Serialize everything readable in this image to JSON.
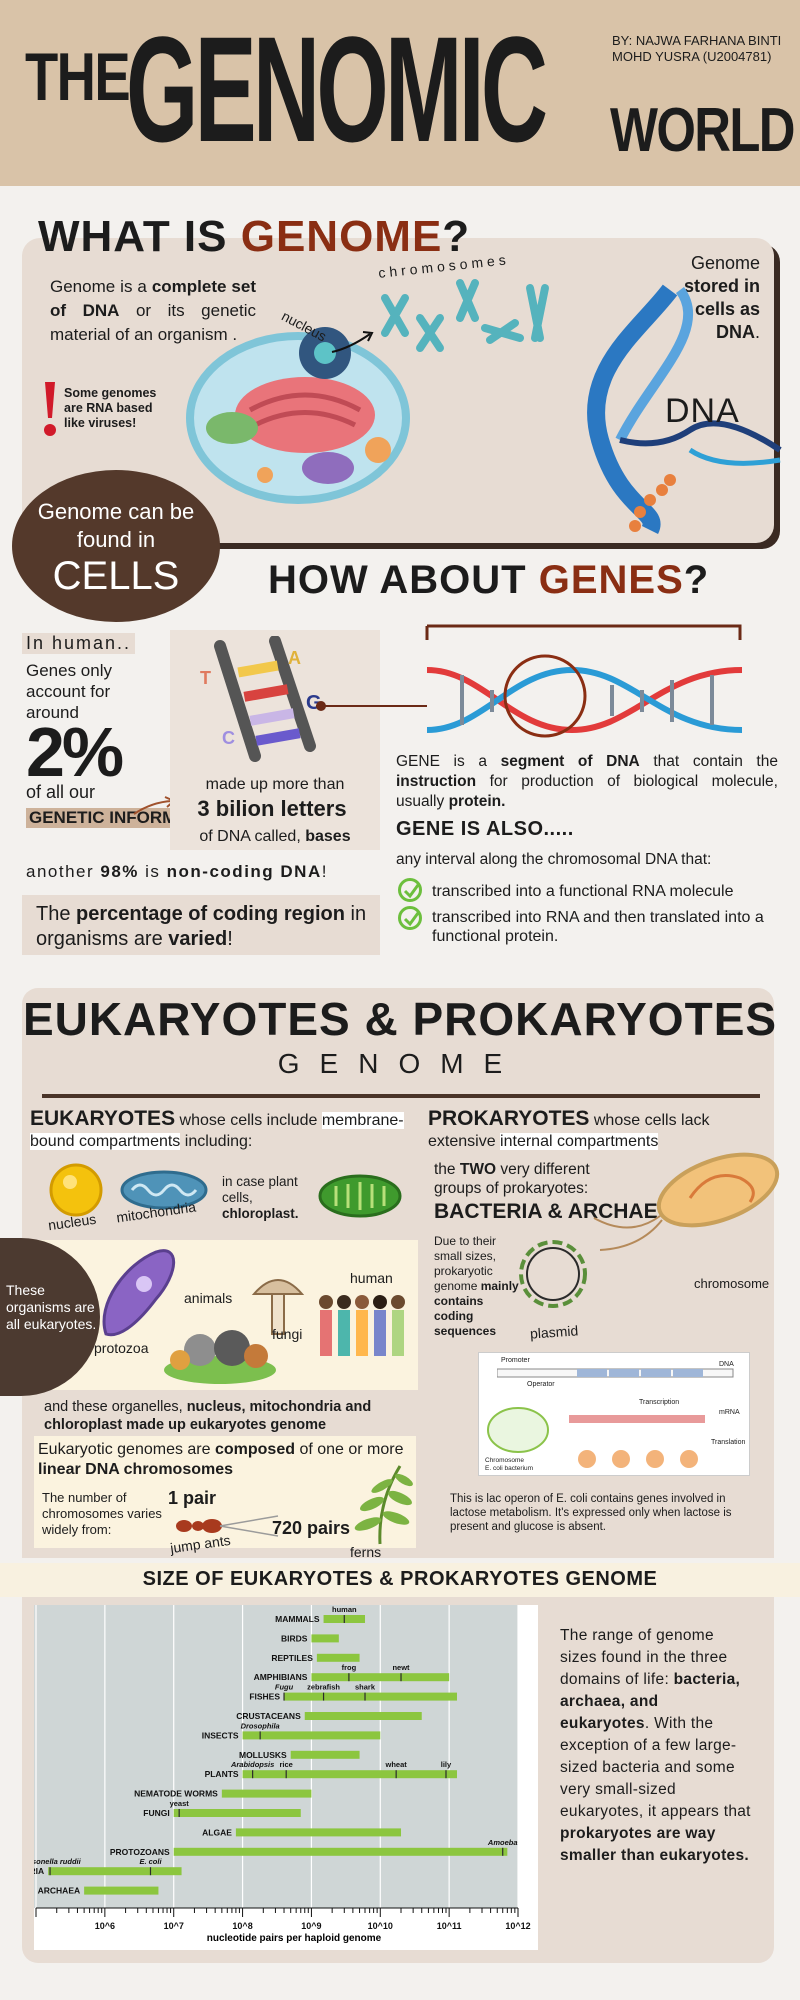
{
  "header": {
    "the": "THE",
    "genomic": "GENOMIC",
    "world": "WORLD",
    "author": "BY: NAJWA FARHANA BINTI MOHD YUSRA (U2004781)"
  },
  "genome": {
    "heading_pre": "WHAT IS ",
    "heading_word": "GENOME",
    "heading_post": "?",
    "def_1": "Genome is a ",
    "def_b1": "complete set of DNA",
    "def_2": " or its genetic material of an organism .",
    "rna_note": "Some genomes are RNA based like viruses!",
    "stored_1": "Genome ",
    "stored_b": "stored in cells as DNA",
    "lbl_chromosomes": "chromosomes",
    "lbl_nucleus": "nucleus",
    "lbl_dna": "DNA",
    "bubble_1": "Genome can be found in",
    "bubble_2": "CELLS"
  },
  "genes": {
    "heading_pre": "HOW ABOUT ",
    "heading_word": "GENES",
    "heading_post": "?",
    "in_human": "In human..",
    "genes_only": "Genes only account for around",
    "pct": "2%",
    "of_all": "of all our",
    "genetic_info": "GENETIC INFORMATION",
    "made_up": "made up more than",
    "billion": "3 bilion letters",
    "of_dna": "of DNA called, ",
    "bases": "bases",
    "another_1": "another ",
    "another_b": "98%",
    "another_2": " is ",
    "another_b2": "non-coding DNA",
    "another_3": "!",
    "percent_1": "The ",
    "percent_b1": "percentage of coding region",
    "percent_2": " in organisms are ",
    "percent_b2": "varied",
    "percent_3": "!",
    "base_t": "T",
    "base_a": "A",
    "base_g": "G",
    "base_c": "C",
    "gene_def_1": "GENE is a ",
    "gene_def_b1": "segment of DNA",
    "gene_def_2": " that contain the ",
    "gene_def_b2": "instruction",
    "gene_def_3": " for production of biological molecule, usually ",
    "gene_def_b3": "protein.",
    "gene_also": "GENE IS ALSO.....",
    "any_interval": "any interval along the chromosomal DNA that:",
    "check_1": "transcribed into a functional RNA molecule",
    "check_2": "transcribed into RNA and then translated into a functional protein."
  },
  "euk_pro": {
    "title": "EUKARYOTES & PROKARYOTES",
    "subtitle": "GENOME",
    "euk_b": "EUKARYOTES",
    "euk_t1": " whose cells include ",
    "euk_hl": "membrane-bound compartments",
    "euk_t2": " including:",
    "lbl_nucleus": "nucleus",
    "lbl_mito": "mitochondria",
    "plant_1": "in case plant cells, ",
    "plant_b": "chloroplast.",
    "lbl_protozoa": "protozoa",
    "lbl_animals": "animals",
    "lbl_fungi": "fungi",
    "lbl_human": "human",
    "side_note": "These organisms are all eukaryotes.",
    "organelles_1": "and these organelles, ",
    "organelles_2": "nucleus, mitochondria and chloroplast made up eukaryotes genome",
    "comp_1": "Eukaryotic genomes are ",
    "comp_b1": "composed",
    "comp_2": " of one or more ",
    "comp_b2": "linear DNA chromosomes",
    "num_text": "The number of chromosomes varies widely from:",
    "pair_1": "1 pair",
    "lbl_ants": "jump ants",
    "pair_720": "720 pairs",
    "lbl_ferns": "ferns",
    "pro_b": "PROKARYOTES",
    "pro_t1": " whose cells lack extensive ",
    "pro_hl": "internal compartments",
    "two_1": "the ",
    "two_b": "TWO",
    "two_2": " very different groups of prokaryotes:",
    "ba": "BACTERIA & ARCHAE",
    "due_1": "Due to their small sizes, prokaryotic genome ",
    "due_b": "mainly contains coding sequences",
    "lbl_plasmid": "plasmid",
    "lbl_chromosome": "chromosome",
    "lac_note": "This is lac operon of E. coli contains genes involved in lactose metabolism. It's expressed only when lactose is present and glucose is absent.",
    "op_promoter": "Promoter",
    "op_operator": "Operator",
    "op_dna": "DNA",
    "op_mrna": "mRNA",
    "op_transcription": "Transcription",
    "op_translation": "Translation",
    "op_chromosome": "Chromosome",
    "op_ecoli": "E. coli bacterium"
  },
  "size": {
    "title": "SIZE OF EUKARYOTES & PROKARYOTES GENOME",
    "text_1": "The range of genome sizes found in the three domains of life: ",
    "text_b1": "bacteria, archaea, and eukaryotes",
    "text_2": ". With the exception of a few large-sized bacteria and some very small-sized eukaryotes, it appears that ",
    "text_b2": "prokaryotes are way smaller than eukaryotes."
  },
  "chart_data": {
    "type": "bar",
    "xlabel": "nucleotide pairs per haploid genome",
    "xscale": "log",
    "xlim": [
      100000,
      1000000000000
    ],
    "xticks": [
      "10^6",
      "10^7",
      "10^8",
      "10^9",
      "10^10",
      "10^11",
      "10^12"
    ],
    "categories": [
      "MAMMALS",
      "BIRDS",
      "REPTILES",
      "AMPHIBIANS",
      "FISHES",
      "CRUSTACEANS",
      "INSECTS",
      "MOLLUSKS",
      "PLANTS",
      "NEMATODE WORMS",
      "FUNGI",
      "ALGAE",
      "PROTOZOANS",
      "BACTERIA",
      "ARCHAEA"
    ],
    "ranges": [
      [
        1500000000,
        6000000000
      ],
      [
        1000000000,
        2500000000
      ],
      [
        1200000000,
        5000000000
      ],
      [
        1000000000,
        100000000000
      ],
      [
        400000000,
        130000000000
      ],
      [
        800000000,
        40000000000
      ],
      [
        100000000,
        10000000000
      ],
      [
        500000000,
        5000000000
      ],
      [
        100000000,
        130000000000
      ],
      [
        50000000,
        1000000000
      ],
      [
        10000000,
        700000000
      ],
      [
        80000000,
        20000000000
      ],
      [
        10000000,
        700000000000
      ],
      [
        150000,
        13000000
      ],
      [
        500000,
        6000000
      ]
    ],
    "annotations": [
      {
        "label": "human",
        "x": 3000000000,
        "row": 0
      },
      {
        "label": "frog",
        "x": 3500000000,
        "row": 3
      },
      {
        "label": "newt",
        "x": 20000000000,
        "row": 3
      },
      {
        "label": "Fugu",
        "x": 400000000,
        "row": 4
      },
      {
        "label": "zebrafish",
        "x": 1500000000,
        "row": 4
      },
      {
        "label": "shark",
        "x": 6000000000,
        "row": 4
      },
      {
        "label": "Drosophila",
        "x": 180000000,
        "row": 6
      },
      {
        "label": "Arabidopsis",
        "x": 140000000,
        "row": 8
      },
      {
        "label": "rice",
        "x": 430000000,
        "row": 8
      },
      {
        "label": "wheat",
        "x": 17000000000,
        "row": 8
      },
      {
        "label": "lily",
        "x": 90000000000,
        "row": 8
      },
      {
        "label": "yeast",
        "x": 12000000,
        "row": 10
      },
      {
        "label": "Amoeba",
        "x": 600000000000,
        "row": 12
      },
      {
        "label": "Carsonella ruddii",
        "x": 160000,
        "row": 13
      },
      {
        "label": "E. coli",
        "x": 4600000,
        "row": 13
      }
    ]
  }
}
